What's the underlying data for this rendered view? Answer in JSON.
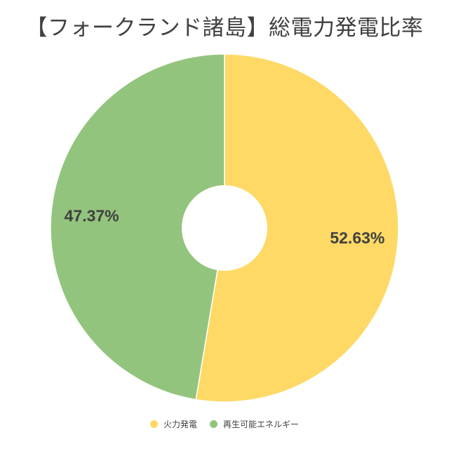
{
  "chart_data": {
    "type": "pie",
    "title": "【フォークランド諸島】総電力発電比率",
    "donut": true,
    "start_angle_deg": 0,
    "direction": "clockwise",
    "series": [
      {
        "name": "火力発電",
        "value": 52.63,
        "label": "52.63%",
        "color": "#FED966"
      },
      {
        "name": "再生可能エネルギー",
        "value": 47.37,
        "label": "47.37%",
        "color": "#93C47D"
      }
    ],
    "legend_position": "bottom"
  }
}
